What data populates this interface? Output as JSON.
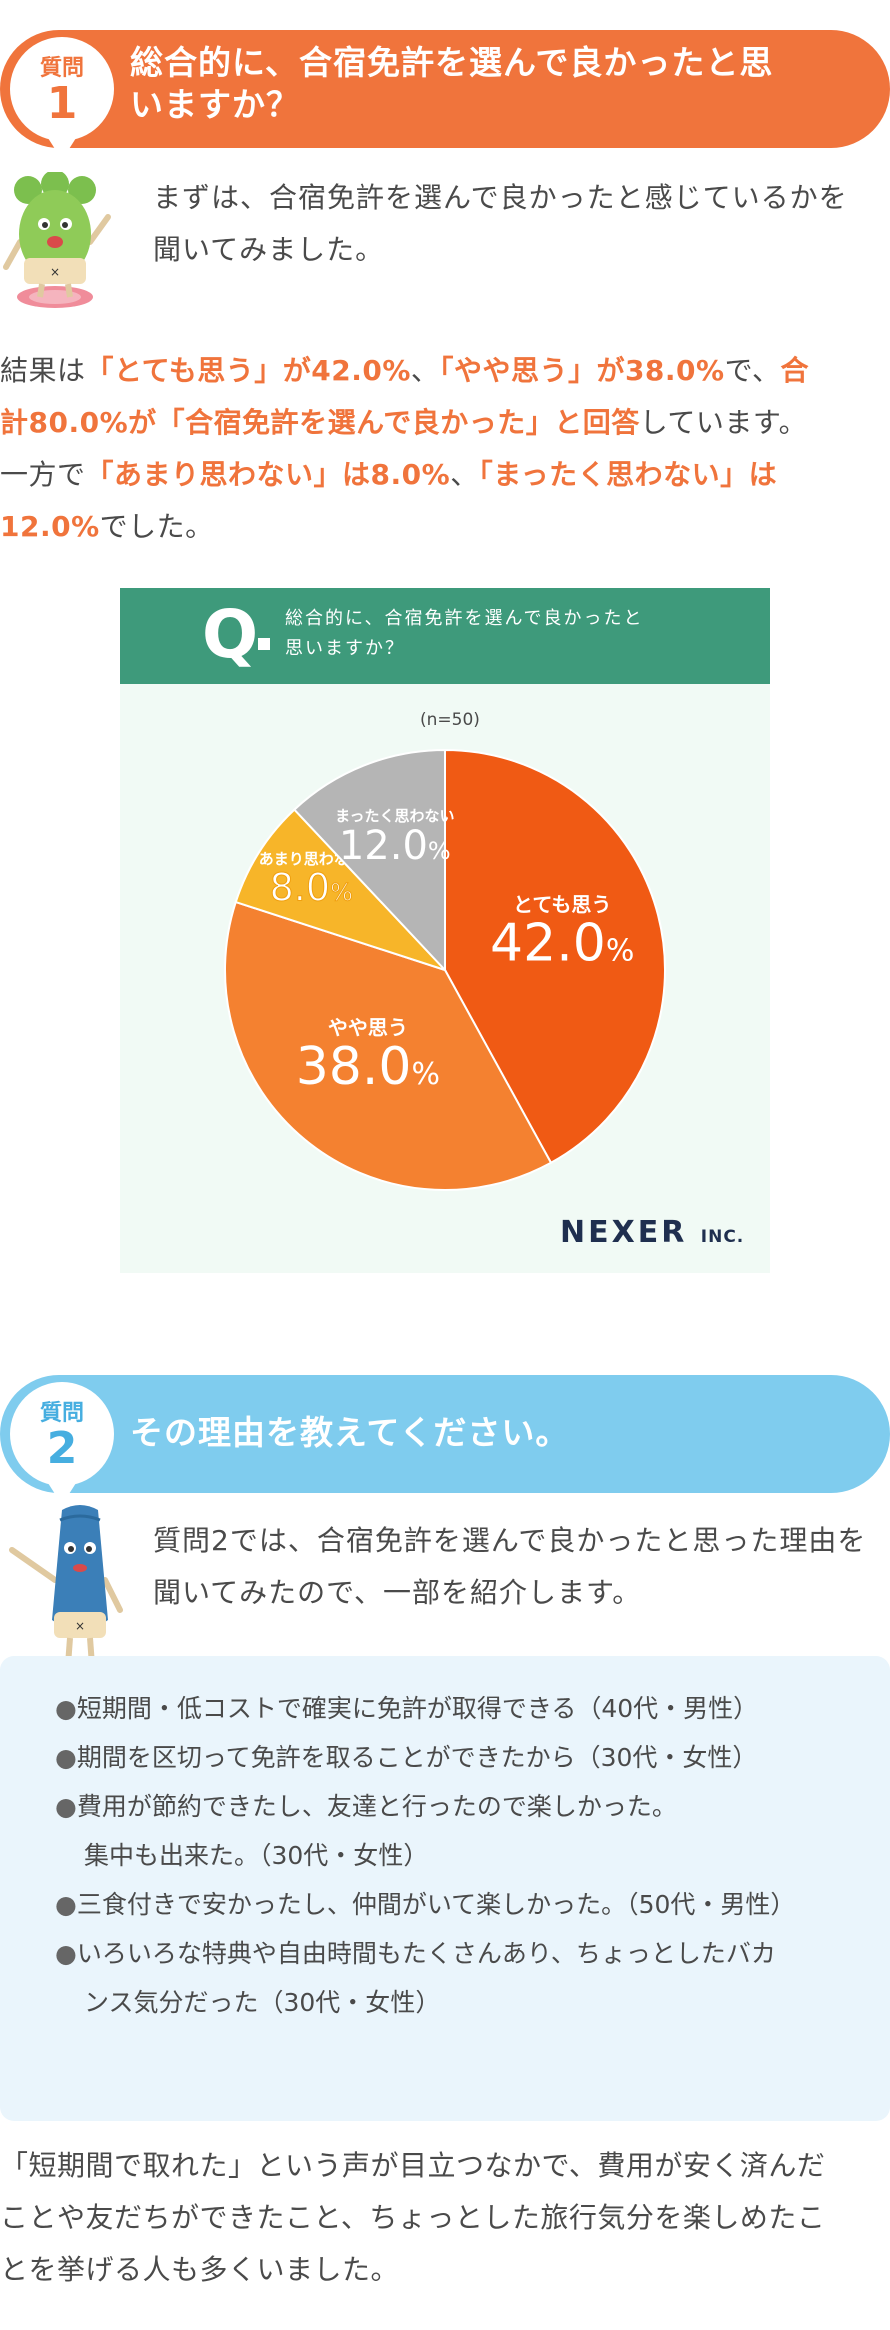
{
  "question1": {
    "label": "質問",
    "number": "1",
    "title_line1": "総合的に、合宿免許を選んで良かったと思",
    "title_line2": "いますか？",
    "intro_line1": "まずは、合宿免許を選んで良かったと感じているかを",
    "intro_line2": "聞いてみました。",
    "result": {
      "l1a": "結果は",
      "l1b": "「とても思う」が42.0%",
      "l1c": "、",
      "l1d": "「やや思う」が38.0%",
      "l1e": "で、",
      "l1f": "合",
      "l2a": "計80.0%が「合宿免許を選んで良かった」と回答",
      "l2b": "しています。",
      "l3a": "一方で",
      "l3b": "「あまり思わない」は8.0%",
      "l3c": "、",
      "l3d": "「まったく思わない」は",
      "l4a": "12.0%",
      "l4b": "でした。"
    }
  },
  "chart_header": {
    "q": "Q",
    "line1": "総合的に、合宿免許を選んで良かったと",
    "line2": "思いますか？"
  },
  "chart_data": {
    "type": "pie",
    "n_label": "(n=50)",
    "slices": [
      {
        "label": "とても思う",
        "value": 42.0,
        "display": "42.0",
        "color": "#f05a14"
      },
      {
        "label": "やや思う",
        "value": 38.0,
        "display": "38.0",
        "color": "#f48130"
      },
      {
        "label": "あまり思わない",
        "value": 8.0,
        "display": "8.0",
        "color": "#f7b529"
      },
      {
        "label": "まったく思わない",
        "value": 12.0,
        "display": "12.0",
        "color": "#b5b5b5"
      }
    ],
    "unit": "%",
    "legend": "none"
  },
  "brand": {
    "name": "NEXER",
    "suffix": "INC."
  },
  "question2": {
    "label": "質問",
    "number": "2",
    "title": "その理由を教えてください。",
    "intro_line1": "質問2では、合宿免許を選んで良かったと思った理由を",
    "intro_line2": "聞いてみたので、一部を紹介します。"
  },
  "reasons": {
    "bullet": "●",
    "items": [
      {
        "l1": "短期間・低コストで確実に免許が取得できる（40代・男性）"
      },
      {
        "l1": "期間を区切って免許を取ることができたから（30代・女性）"
      },
      {
        "l1": "費用が節約できたし、友達と行ったので楽しかった。",
        "l2": "集中も出来た。（30代・女性）"
      },
      {
        "l1": "三食付きで安かったし、仲間がいて楽しかった。（50代・男性）"
      },
      {
        "l1": "いろいろな特典や自由時間もたくさんあり、ちょっとしたバカ",
        "l2": "ンス気分だった（30代・女性）"
      }
    ]
  },
  "closing": {
    "l1": "「短期間で取れた」という声が目立つなかで、費用が安く済んだ",
    "l2": "ことや友だちができたこと、ちょっとした旅行気分を楽しめたこ",
    "l3": "とを挙げる人も多くいました。"
  }
}
